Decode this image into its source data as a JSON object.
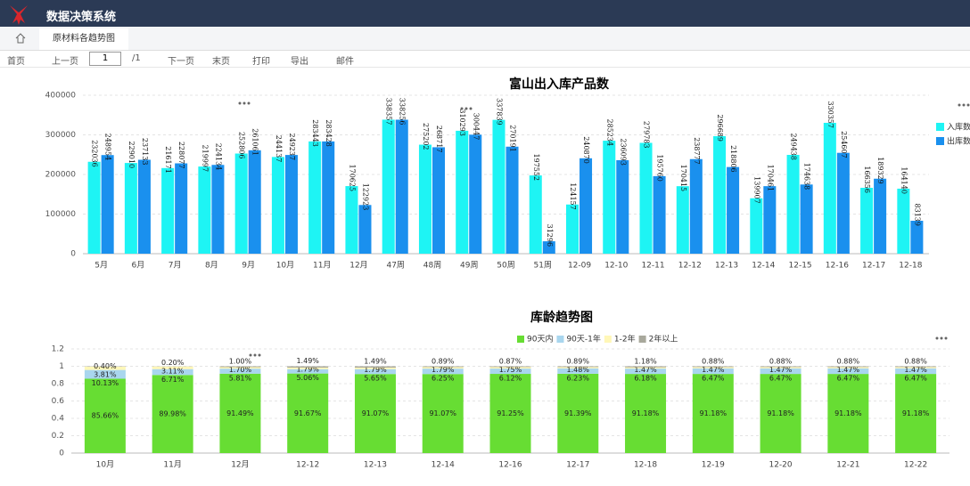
{
  "header": {
    "title": "数据决策系统"
  },
  "tabs": [
    "原材料各趋势图"
  ],
  "toolbar": {
    "first": "首页",
    "prev": "上一页",
    "page": "1",
    "total": "/1",
    "next": "下一页",
    "last": "末页",
    "print": "打印",
    "export": "导出",
    "mail": "邮件"
  },
  "chart_data": [
    {
      "type": "bar",
      "title": "富山出入库产品数",
      "categories": [
        "5月",
        "6月",
        "7月",
        "8月",
        "9月",
        "10月",
        "11月",
        "12月",
        "47周",
        "48周",
        "49周",
        "50周",
        "51周",
        "12-09",
        "12-10",
        "12-11",
        "12-12",
        "12-13",
        "12-14",
        "12-15",
        "12-16",
        "12-17",
        "12-18"
      ],
      "series": [
        {
          "name": "入库数",
          "color": "#1ef4f4",
          "values": [
            232036,
            229010,
            216171,
            219997,
            252806,
            244137,
            283443,
            170625,
            338357,
            275202,
            310293,
            337839,
            197552,
            124157,
            285234,
            279783,
            170415,
            296689,
            139907,
            249438,
            330357,
            166356,
            164140
          ]
        },
        {
          "name": "出库数",
          "color": "#1a90ee",
          "values": [
            248954,
            237133,
            228077,
            224134,
            261061,
            249237,
            283428,
            122923,
            338256,
            268717,
            300447,
            270191,
            31296,
            240870,
            236093,
            195760,
            238777,
            218806,
            170461,
            174638,
            254607,
            189329,
            83139
          ]
        }
      ],
      "ylim": [
        0,
        400000
      ],
      "yticks": [
        0,
        100000,
        200000,
        300000,
        400000
      ],
      "grid": true,
      "legend": "right"
    },
    {
      "type": "stacked_bar",
      "title": "库龄趋势图",
      "categories": [
        "10月",
        "11月",
        "12月",
        "12-12",
        "12-13",
        "12-14",
        "12-16",
        "12-17",
        "12-18",
        "12-19",
        "12-20",
        "12-21",
        "12-22"
      ],
      "series": [
        {
          "name": "90天内",
          "color": "#67dd33",
          "values": [
            0.8566,
            0.8998,
            0.9149,
            0.9167,
            0.9107,
            0.9107,
            0.9125,
            0.9139,
            0.9118,
            0.9118,
            0.9118,
            0.9118,
            0.9118
          ],
          "value_labels": [
            "85.66%",
            "89.98%",
            "91.49%",
            "91.67%",
            "91.07%",
            "91.07%",
            "91.25%",
            "91.39%",
            "91.18%",
            "91.18%",
            "91.18%",
            "91.18%",
            "91.18%"
          ]
        },
        {
          "name": "90天-1年",
          "color": "#a9d6ee",
          "values": [
            0.1013,
            0.0671,
            0.0581,
            0.0506,
            0.0565,
            0.0625,
            0.0612,
            0.0623,
            0.0618,
            0.0647,
            0.0647,
            0.0647,
            0.0647
          ],
          "value_labels": [
            "10.13%",
            "6.71%",
            "5.81%",
            "5.06%",
            "5.65%",
            "6.25%",
            "6.12%",
            "6.23%",
            "6.18%",
            "6.47%",
            "6.47%",
            "6.47%",
            "6.47%"
          ]
        },
        {
          "name": "1-2年",
          "color": "#fff7b8",
          "values": [
            0.0381,
            0.0311,
            0.017,
            0.0179,
            0.0179,
            0.0179,
            0.0175,
            0.0148,
            0.0147,
            0.0147,
            0.0147,
            0.0147,
            0.0147
          ],
          "value_labels": [
            "3.81%",
            "3.11%",
            "1.70%",
            "1.79%",
            "1.79%",
            "1.79%",
            "1.75%",
            "1.48%",
            "1.47%",
            "1.47%",
            "1.47%",
            "1.47%",
            "1.47%"
          ]
        },
        {
          "name": "2年以上",
          "color": "#a8a89c",
          "values": [
            0.004,
            0.002,
            0.01,
            0.0149,
            0.0149,
            0.0089,
            0.0087,
            0.0089,
            0.0118,
            0.0088,
            0.0088,
            0.0088,
            0.0088
          ],
          "value_labels": [
            "0.40%",
            "0.20%",
            "1.00%",
            "1.49%",
            "1.49%",
            "0.89%",
            "0.87%",
            "0.89%",
            "1.18%",
            "0.88%",
            "0.88%",
            "0.88%",
            "0.88%"
          ]
        }
      ],
      "ylim": [
        0,
        1.2
      ],
      "yticks": [
        0,
        0.2,
        0.4,
        0.6,
        0.8,
        1,
        1.2
      ],
      "grid": true,
      "legend": "top"
    }
  ]
}
